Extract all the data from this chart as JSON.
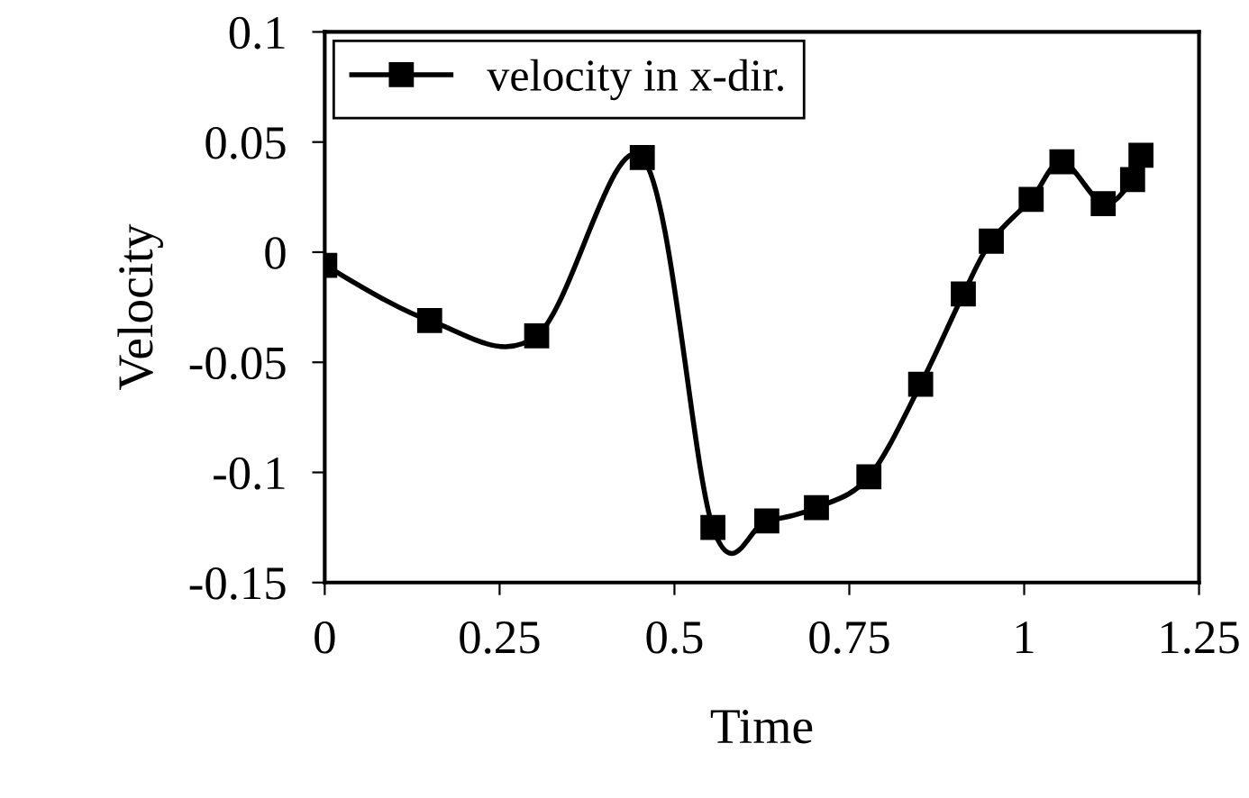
{
  "chart_data": {
    "type": "line",
    "xlabel": "Time",
    "ylabel": "Velocity",
    "series": [
      {
        "name": "velocity in x-dir.",
        "color": "#000000",
        "x": [
          0,
          0.15,
          0.303,
          0.454,
          0.555,
          0.632,
          0.703,
          0.778,
          0.852,
          0.913,
          0.953,
          1.01,
          1.054,
          1.113,
          1.155,
          1.167
        ],
        "values": [
          -0.006,
          -0.031,
          -0.038,
          0.043,
          -0.125,
          -0.122,
          -0.116,
          -0.102,
          -0.06,
          -0.019,
          0.005,
          0.024,
          0.041,
          0.022,
          0.033,
          0.044
        ]
      }
    ],
    "xlim": [
      0,
      1.25
    ],
    "xticks": [
      0,
      0.25,
      0.5,
      0.75,
      1,
      1.25
    ],
    "ylim": [
      -0.15,
      0.1
    ],
    "yticks": [
      -0.15,
      -0.1,
      -0.05,
      0,
      0.05,
      0.1
    ],
    "marker": "square",
    "line_style": "solid",
    "legend": "top left",
    "grid": false
  }
}
